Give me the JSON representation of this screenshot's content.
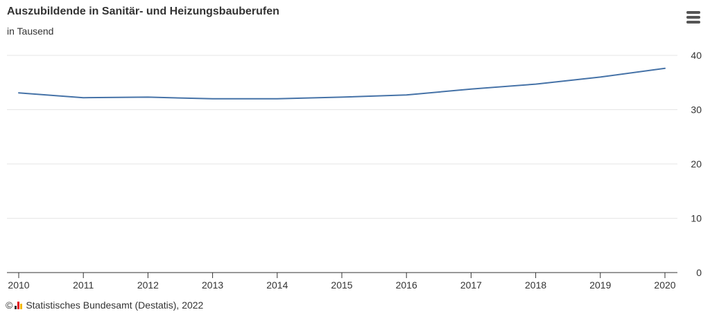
{
  "header": {
    "title": "Auszubildende in Sanitär- und Heizungsbauberufen",
    "subtitle": "in Tausend",
    "menu_icon": "hamburger-menu-icon"
  },
  "footer": {
    "copyright_symbol": "©",
    "logo_icon": "destatis-logo-icon",
    "credit": "Statistisches Bundesamt (Destatis), 2022"
  },
  "colors": {
    "line": "#4572a7",
    "grid": "#e6e6e6",
    "axis": "#333333"
  },
  "chart_data": {
    "type": "line",
    "categories": [
      "2010",
      "2011",
      "2012",
      "2013",
      "2014",
      "2015",
      "2016",
      "2017",
      "2018",
      "2019",
      "2020"
    ],
    "series": [
      {
        "values": [
          33.1,
          32.2,
          32.3,
          32.0,
          32.0,
          32.3,
          32.7,
          33.8,
          34.7,
          36.0,
          37.6
        ]
      }
    ],
    "yticks": [
      "0",
      "10",
      "20",
      "30",
      "40"
    ],
    "ylim": [
      0,
      40
    ],
    "y_axis_side": "right",
    "grid": true,
    "legend": false
  }
}
